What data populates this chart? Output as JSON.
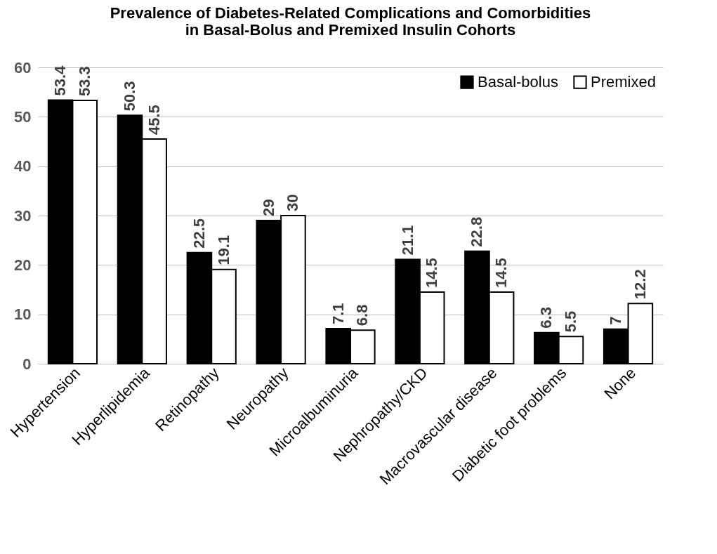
{
  "chart_data": {
    "type": "bar",
    "title": "Prevalence of Diabetes-Related Complications and Comorbidities\nin Basal-Bolus and Premixed Insulin Cohorts",
    "categories": [
      "Hypertension",
      "Hyperlipidemia",
      "Retinopathy",
      "Neuropathy",
      "Microalbuminuria",
      "Nephropathy/CKD",
      "Macrovascular disease",
      "Diabetic foot problems",
      "None"
    ],
    "series": [
      {
        "name": "Basal-bolus",
        "color": "#000000",
        "values": [
          53.4,
          50.3,
          22.5,
          29,
          7.1,
          21.1,
          22.8,
          6.3,
          7
        ]
      },
      {
        "name": "Premixed",
        "color": "#ffffff",
        "values": [
          53.3,
          45.5,
          19.1,
          30,
          6.8,
          14.5,
          14.5,
          5.5,
          12.2
        ]
      }
    ],
    "ylim": [
      0,
      60
    ],
    "yticks": [
      0,
      10,
      20,
      30,
      40,
      50,
      60
    ],
    "grid": "y",
    "legend": "top right",
    "data_labels": true
  }
}
